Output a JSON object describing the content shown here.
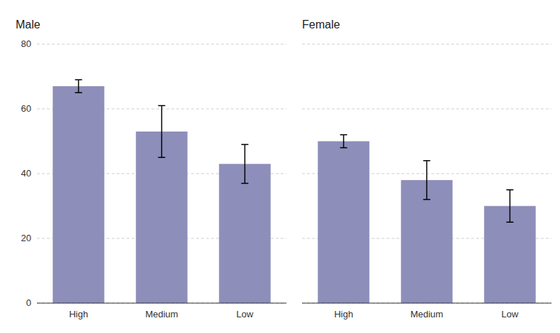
{
  "chart_data": [
    {
      "type": "bar",
      "title": "Male",
      "categories": [
        "High",
        "Medium",
        "Low"
      ],
      "values": [
        67,
        53,
        43
      ],
      "errors_low": [
        2,
        8,
        6
      ],
      "errors_high": [
        2,
        8,
        6
      ],
      "color": "#8E8EBA",
      "ylim": [
        0,
        80
      ],
      "yticks": [
        0,
        20,
        40,
        60,
        80
      ],
      "grid": true
    },
    {
      "type": "bar",
      "title": "Female",
      "categories": [
        "High",
        "Medium",
        "Low"
      ],
      "values": [
        50,
        38,
        30
      ],
      "errors_low": [
        2,
        6,
        5
      ],
      "errors_high": [
        2,
        6,
        5
      ],
      "color": "#8E8EBA",
      "ylim": [
        0,
        80
      ],
      "yticks": [
        0,
        20,
        40,
        60,
        80
      ],
      "grid": true,
      "tick_labels": "x"
    }
  ]
}
